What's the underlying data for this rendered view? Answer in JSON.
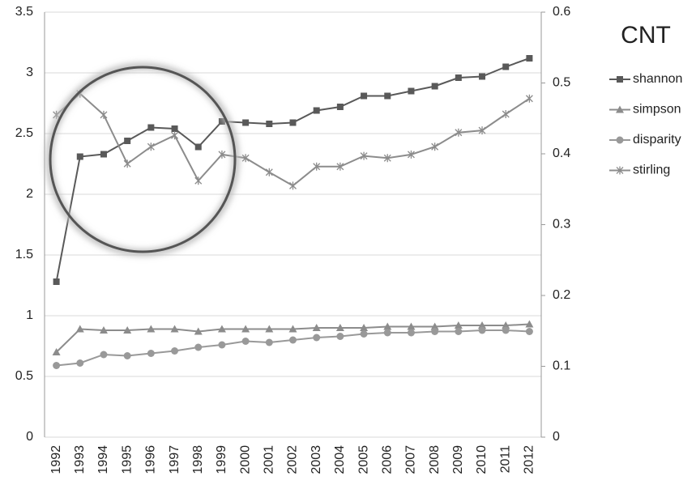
{
  "chart_data": {
    "type": "line",
    "title": "CNT",
    "categories": [
      "1992",
      "1993",
      "1994",
      "1995",
      "1996",
      "1997",
      "1998",
      "1999",
      "2000",
      "2001",
      "2002",
      "2003",
      "2004",
      "2005",
      "2006",
      "2007",
      "2008",
      "2009",
      "2010",
      "2011",
      "2012"
    ],
    "series": [
      {
        "name": "shannon",
        "color": "#595959",
        "marker": "square",
        "axis": "y",
        "values": [
          1.28,
          2.31,
          2.33,
          2.44,
          2.55,
          2.54,
          2.39,
          2.6,
          2.59,
          2.58,
          2.59,
          2.69,
          2.72,
          2.81,
          2.81,
          2.85,
          2.89,
          2.96,
          2.97,
          3.05,
          3.12
        ]
      },
      {
        "name": "simpson",
        "color": "#8c8c8c",
        "marker": "triangle",
        "axis": "y",
        "values": [
          0.7,
          0.89,
          0.88,
          0.88,
          0.89,
          0.89,
          0.87,
          0.89,
          0.89,
          0.89,
          0.89,
          0.9,
          0.9,
          0.9,
          0.91,
          0.91,
          0.91,
          0.92,
          0.92,
          0.92,
          0.93
        ]
      },
      {
        "name": "disparity",
        "color": "#999999",
        "marker": "circle",
        "axis": "y",
        "values": [
          0.59,
          0.61,
          0.68,
          0.67,
          0.69,
          0.71,
          0.74,
          0.76,
          0.79,
          0.78,
          0.8,
          0.82,
          0.83,
          0.85,
          0.86,
          0.86,
          0.87,
          0.87,
          0.88,
          0.88,
          0.87
        ]
      },
      {
        "name": "stirling",
        "color": "#8c8c8c",
        "marker": "star",
        "axis": "y2",
        "values": [
          0.455,
          0.485,
          0.455,
          0.386,
          0.41,
          0.426,
          0.362,
          0.399,
          0.394,
          0.374,
          0.355,
          0.382,
          0.382,
          0.397,
          0.394,
          0.399,
          0.41,
          0.43,
          0.433,
          0.456,
          0.478
        ]
      }
    ],
    "ylim": [
      0,
      3.5
    ],
    "yticks": [
      0,
      0.5,
      1,
      1.5,
      2,
      2.5,
      3,
      3.5
    ],
    "y2lim": [
      0,
      0.6
    ],
    "y2ticks": [
      0,
      0.1,
      0.2,
      0.3,
      0.4,
      0.5,
      0.6
    ],
    "grid": true,
    "legend": "right"
  }
}
